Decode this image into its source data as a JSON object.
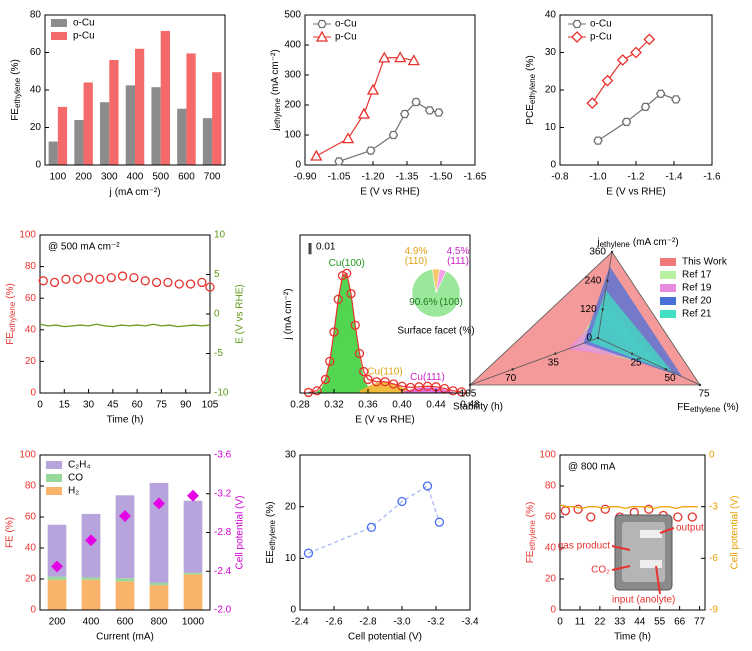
{
  "chart_data": [
    {
      "type": "grouped_bar",
      "categories": [
        "100",
        "200",
        "300",
        "400",
        "500",
        "600",
        "700"
      ],
      "series": [
        {
          "name": "o-Cu",
          "color": "#8c8c8c",
          "values": [
            12.5,
            24,
            33.5,
            42.5,
            41.5,
            30,
            25
          ]
        },
        {
          "name": "p-Cu",
          "color": "#f46a6a",
          "values": [
            31,
            44,
            56,
            62,
            71.5,
            59.5,
            49.5
          ]
        }
      ],
      "ylim": [
        0,
        80
      ],
      "yticks": [
        0,
        20,
        40,
        60,
        80
      ],
      "xlabel": {
        "main": "j",
        "unit": "(mA cm⁻²)"
      },
      "ylabel": {
        "main": "FE",
        "sub": "ethylene",
        "unit": "(%)"
      }
    },
    {
      "type": "line",
      "xlim": [
        -0.9,
        -1.65
      ],
      "xticks": [
        {
          "value": -0.9,
          "label": "-0.90"
        },
        -1.05,
        {
          "value": -1.2,
          "label": "-1.20"
        },
        -1.35,
        {
          "value": -1.5,
          "label": "-1.50"
        },
        -1.65
      ],
      "ylim": [
        0,
        500
      ],
      "yticks": [
        0,
        100,
        200,
        300,
        400,
        500
      ],
      "series": [
        {
          "name": "o-Cu",
          "color": "#707070",
          "marker": "hexagon",
          "x": [
            -1.05,
            -1.19,
            -1.29,
            -1.34,
            -1.39,
            -1.45,
            -1.49
          ],
          "values": [
            12,
            48,
            100,
            170,
            210,
            182,
            175
          ]
        },
        {
          "name": "p-Cu",
          "color": "#e8322e",
          "marker": "triangle",
          "x": [
            -0.95,
            -1.09,
            -1.16,
            -1.2,
            -1.25,
            -1.32,
            -1.38
          ],
          "values": [
            30,
            88,
            170,
            250,
            357,
            358,
            348
          ]
        }
      ],
      "xlabel": "E (V vs RHE)",
      "ylabel": {
        "main": "j",
        "sub": "ethylene",
        "unit": "(mA cm⁻²)"
      }
    },
    {
      "type": "line",
      "xlim": [
        -0.8,
        -1.6
      ],
      "xticks": [
        -0.8,
        {
          "value": -1,
          "label": "-1.0"
        },
        -1.2,
        -1.4,
        -1.6
      ],
      "ylim": [
        0,
        40
      ],
      "yticks": [
        0,
        10,
        20,
        30,
        40
      ],
      "series": [
        {
          "name": "o-Cu",
          "color": "#707070",
          "marker": "hexagon",
          "x": [
            -1.0,
            -1.15,
            -1.25,
            -1.33,
            -1.41
          ],
          "values": [
            6.5,
            11.5,
            15.5,
            19,
            17.5
          ]
        },
        {
          "name": "p-Cu",
          "color": "#e8322e",
          "marker": "diamond",
          "x": [
            -0.97,
            -1.05,
            -1.13,
            -1.2,
            -1.27
          ],
          "values": [
            16.5,
            22.5,
            28,
            30,
            33.5
          ]
        }
      ],
      "xlabel": "E (V vs RHE)",
      "ylabel": {
        "main": "PCE",
        "sub": "ethylene",
        "unit": "(%)"
      }
    },
    {
      "type": "dual_line",
      "xlim": [
        0,
        105
      ],
      "xticks": [
        0,
        15,
        30,
        45,
        60,
        75,
        90,
        105
      ],
      "ylim": [
        0,
        100
      ],
      "yticks": [
        0,
        20,
        40,
        60,
        80,
        100
      ],
      "y2lim": [
        -10,
        10
      ],
      "y2ticks": [
        -10,
        -5,
        0,
        5,
        10
      ],
      "y_color": "#e8322e",
      "y2_color": "#5c9a18",
      "series": [
        {
          "color": "#e8322e",
          "marker": "circle",
          "x": [
            2,
            9,
            16,
            23,
            30,
            37,
            44,
            51,
            58,
            65,
            72,
            79,
            86,
            93,
            100,
            105
          ],
          "values": [
            71,
            70,
            72,
            72,
            73,
            72,
            73,
            74,
            73,
            71,
            70,
            70,
            69,
            69,
            70,
            67
          ]
        },
        {
          "color": "#6b9a1f",
          "axis": "y2",
          "x": [
            0,
            5,
            10,
            15,
            20,
            25,
            30,
            35,
            40,
            45,
            50,
            55,
            60,
            65,
            70,
            75,
            80,
            85,
            90,
            95,
            100,
            105
          ],
          "values": [
            -1.3,
            -1.5,
            -1.4,
            -1.6,
            -1.5,
            -1.4,
            -1.5,
            -1.3,
            -1.5,
            -1.6,
            -1.4,
            -1.5,
            -1.4,
            -1.5,
            -1.3,
            -1.5,
            -1.4,
            -1.6,
            -1.5,
            -1.4,
            -1.5,
            -1.4
          ]
        }
      ],
      "annotation": "@ 500 mA cm⁻²",
      "xlabel": "Time (h)",
      "ylabel": {
        "main": "FE",
        "sub": "ethylene",
        "unit": "(%)"
      },
      "y2label": "E (V vs RHE)"
    },
    {
      "type": "peak_fit",
      "xlim": [
        0.28,
        0.48
      ],
      "xticks": [
        0.28,
        0.32,
        0.36,
        {
          "value": 0.4,
          "label": "0.40"
        },
        0.44,
        0.48
      ],
      "ylim": [
        0,
        0.14
      ],
      "scale_bar": 0.01,
      "scale_bar_label": "0.01",
      "components": [
        {
          "name": "Cu(100)",
          "color": "#3fd13f",
          "label_color": "#1e9a1e",
          "x": [
            0.3,
            0.305,
            0.31,
            0.315,
            0.32,
            0.325,
            0.33,
            0.335,
            0.34,
            0.345,
            0.35,
            0.355,
            0.36,
            0.365,
            0.37
          ],
          "values": [
            0.0012,
            0.0042,
            0.0121,
            0.0283,
            0.0537,
            0.0829,
            0.1041,
            0.1062,
            0.0882,
            0.0596,
            0.0327,
            0.0146,
            0.0053,
            0.0016,
            0.0004
          ]
        },
        {
          "name": "Cu(110)",
          "color": "#f0b428",
          "label_color": "#e0a010",
          "x": [
            0.35,
            0.36,
            0.37,
            0.38,
            0.39,
            0.4,
            0.41
          ],
          "values": [
            0.002,
            0.006,
            0.009,
            0.01,
            0.008,
            0.005,
            0.002
          ]
        },
        {
          "name": "Cu(111)",
          "color": "#e060e0",
          "label_color": "#cc22cc",
          "x": [
            0.4,
            0.41,
            0.42,
            0.43,
            0.44,
            0.45,
            0.46
          ],
          "values": [
            0.001,
            0.003,
            0.0045,
            0.005,
            0.0045,
            0.003,
            0.001
          ]
        }
      ],
      "measured": {
        "color": "#e8322e",
        "x": [
          0.29,
          0.3,
          0.31,
          0.315,
          0.32,
          0.325,
          0.33,
          0.335,
          0.34,
          0.345,
          0.35,
          0.355,
          0.36,
          0.37,
          0.38,
          0.39,
          0.4,
          0.41,
          0.42,
          0.43,
          0.44,
          0.45,
          0.46,
          0.47
        ],
        "values": [
          0.0005,
          0.002,
          0.012,
          0.028,
          0.054,
          0.083,
          0.104,
          0.106,
          0.088,
          0.06,
          0.035,
          0.019,
          0.012,
          0.01,
          0.01,
          0.008,
          0.006,
          0.005,
          0.0055,
          0.006,
          0.0055,
          0.004,
          0.002,
          0.001
        ]
      },
      "pie": {
        "values": [
          90.6,
          4.9,
          4.5
        ],
        "value_labels": [
          "90.6%",
          "4.9%",
          "4.5%"
        ],
        "labels": [
          "(100)",
          "(110)",
          "(111)"
        ],
        "colors": [
          "#9be89b",
          "#f5c86a",
          "#f5a0e8"
        ],
        "label_colors": [
          "#1e7a1e",
          "#e0a010",
          "#cc22cc"
        ],
        "title": "Surface facet (%)"
      },
      "xlabel": "E (V vs RHE)",
      "ylabel": {
        "main": "j",
        "unit": "(mA cm⁻²)"
      }
    },
    {
      "type": "radar",
      "axes": [
        {
          "label": {
            "main": "j",
            "sub": "ethylene",
            "unit": "(mA cm⁻²)"
          },
          "lim": [
            0,
            360
          ],
          "ticks": [
            0,
            120,
            240,
            360
          ]
        },
        {
          "label": "Stability (h)",
          "lim": [
            0,
            105
          ],
          "ticks": [
            35,
            70,
            105
          ]
        },
        {
          "label": {
            "main": "FE",
            "sub": "ethylene",
            "unit": "(%)"
          },
          "lim": [
            0,
            75
          ],
          "ticks": [
            25,
            50,
            75
          ]
        }
      ],
      "series": [
        {
          "name": "This Work",
          "color": "#f07878",
          "values": [
            360,
            105,
            75
          ]
        },
        {
          "name": "Ref 17",
          "color": "#b8f0a0",
          "values": [
            150,
            20,
            45
          ]
        },
        {
          "name": "Ref 19",
          "color": "#e78ae0",
          "values": [
            100,
            25,
            35
          ]
        },
        {
          "name": "Ref 20",
          "color": "#4a6fd8",
          "values": [
            300,
            12,
            62
          ]
        },
        {
          "name": "Ref 21",
          "color": "#40e0c0",
          "values": [
            200,
            8,
            55
          ]
        }
      ]
    },
    {
      "type": "stacked_bar_dual",
      "categories": [
        "200",
        "400",
        "600",
        "800",
        "1000"
      ],
      "series": [
        {
          "name": "H₂",
          "color": "#f9b36a",
          "values": [
            19.5,
            19.5,
            18.5,
            16,
            23
          ]
        },
        {
          "name": "CO",
          "color": "#98d898",
          "values": [
            2,
            1.5,
            2,
            1.5,
            1
          ]
        },
        {
          "name": "C₂H₄",
          "color": "#b7a4dc",
          "values": [
            33.5,
            41,
            53.5,
            64.5,
            46.5
          ]
        },
        {
          "axis": "y2",
          "color": "#e600e6",
          "marker": "diamond",
          "values": [
            -2.45,
            -2.72,
            -2.97,
            -3.1,
            -3.18
          ]
        }
      ],
      "ylim": [
        0,
        100
      ],
      "yticks": [
        0,
        20,
        40,
        60,
        80,
        100
      ],
      "y2lim": [
        -2,
        -3.6
      ],
      "y2ticks": [
        {
          "value": -2,
          "label": "-2.0"
        },
        -2.4,
        -2.8,
        -3.2,
        -3.6
      ],
      "y_color": "#e8322e",
      "y2_color": "#d400d4",
      "xlabel": "Current (mA)",
      "ylabel": "FE (%)",
      "y2label": "Cell potential (V)"
    },
    {
      "type": "line",
      "xlim": [
        -2.4,
        -3.4
      ],
      "xticks": [
        -2.4,
        -2.6,
        -2.8,
        {
          "value": -3,
          "label": "-3.0"
        },
        -3.2,
        -3.4
      ],
      "ylim": [
        0,
        30
      ],
      "yticks": [
        0,
        10,
        20,
        30
      ],
      "series": [
        {
          "color": "#4a6cf7",
          "line_color": "#9fb4f0",
          "line_style": "dashed",
          "marker": "circle",
          "x": [
            -2.45,
            -2.82,
            -3.0,
            -3.15,
            -3.22
          ],
          "values": [
            11,
            16,
            21,
            24,
            17
          ]
        }
      ],
      "xlabel": "Cell potential (V)",
      "ylabel": {
        "main": "EE",
        "sub": "ethylene",
        "unit": "(%)"
      }
    },
    {
      "type": "dual_line",
      "xlim": [
        0,
        80
      ],
      "xticks": [
        0,
        11,
        22,
        33,
        44,
        55,
        66,
        77
      ],
      "ylim": [
        0,
        100
      ],
      "yticks": [
        0,
        20,
        40,
        60,
        80,
        100
      ],
      "y2lim": [
        -9,
        0
      ],
      "y2ticks": [
        0,
        -3,
        -6,
        -9
      ],
      "y_color": "#e8322e",
      "y2_color": "#e8a000",
      "series": [
        {
          "color": "#e8322e",
          "marker": "circle",
          "x": [
            3,
            10,
            17,
            25,
            33,
            41,
            49,
            57,
            65,
            73
          ],
          "values": [
            64,
            65,
            60,
            65,
            60,
            63,
            65,
            61,
            60,
            60
          ]
        },
        {
          "color": "#f0a30a",
          "axis": "y2",
          "x": [
            0,
            4,
            8,
            12,
            16,
            20,
            24,
            28,
            32,
            36,
            40,
            44,
            48,
            52,
            56,
            60,
            64,
            68,
            72,
            76
          ],
          "values": [
            -2.9,
            -3.0,
            -3.0,
            -3.1,
            -3.0,
            -3.0,
            -3.1,
            -3.0,
            -3.0,
            -3.1,
            -3.0,
            -3.0,
            -3.0,
            -3.1,
            -3.0,
            -3.0,
            -3.1,
            -3.0,
            -3.0,
            -3.0
          ]
        }
      ],
      "annotation": "@ 800 mA",
      "inset_labels": [
        "gas product",
        "output",
        "CO₂",
        "input (anolyte)"
      ],
      "xlabel": "Time (h)",
      "ylabel": {
        "main": "FE",
        "sub": "ethylene",
        "unit": "(%)"
      },
      "y2label": "Cell potential (V)"
    }
  ]
}
